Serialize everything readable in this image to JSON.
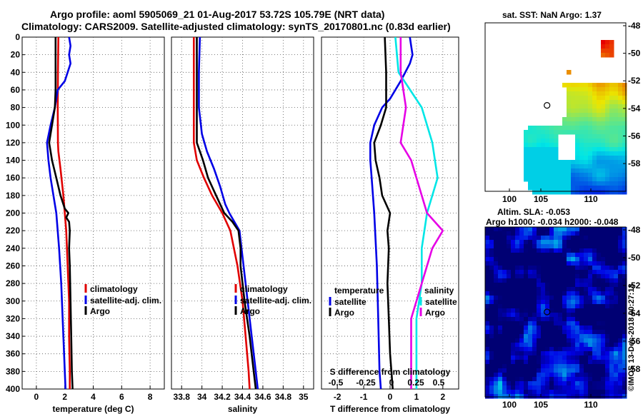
{
  "header": {
    "title_line1": "Argo profile: aoml 5905069_21 01-Aug-2017 53.72S 105.79E (NRT data)",
    "title_line2": "Climatology: CARS2009. Satellite-adjusted climatology: synTS_20170801.nc (0.83d earlier)"
  },
  "maps": {
    "sst_title": "sat. SST: NaN Argo: 1.37",
    "sla_title_line1": "Altim. SLA: -0.053",
    "sla_title_line2": "Argo h1000: -0.034 h2000: -0.048",
    "lat_ticks": [
      "-48",
      "-50",
      "-52",
      "-54",
      "-56",
      "-58"
    ],
    "lon_ticks": [
      "100",
      "105",
      "110"
    ]
  },
  "credit": "©IMOS 13-Dec-2018 00:27:18",
  "colors": {
    "climatology": "#e00000",
    "satellite": "#0000e6",
    "argo": "#000000",
    "sal_satellite": "#00e6e6",
    "sal_argo": "#e600e6"
  },
  "chart_data": [
    {
      "type": "line",
      "name": "temperature",
      "xlabel": "temperature (deg C)",
      "ylabel": "depth",
      "xlim": [
        -1,
        9
      ],
      "ylim": [
        400,
        0
      ],
      "xticks": [
        0,
        2,
        4,
        6,
        8
      ],
      "xtick_labels": [
        "0",
        "2",
        "4",
        "6",
        "8"
      ],
      "yticks": [
        0,
        20,
        40,
        60,
        80,
        100,
        120,
        140,
        160,
        180,
        200,
        220,
        240,
        260,
        280,
        300,
        320,
        340,
        360,
        380,
        400
      ],
      "grid": true,
      "legend": [
        "climatology",
        "satellite-adj. clim.",
        "Argo"
      ],
      "series": [
        {
          "name": "climatology",
          "color": "#e00000",
          "depth": [
            0,
            40,
            80,
            120,
            130,
            150,
            180,
            220,
            260,
            300,
            340,
            380,
            400
          ],
          "values": [
            1.55,
            1.52,
            1.5,
            1.52,
            1.55,
            1.7,
            1.9,
            2.1,
            2.2,
            2.3,
            2.3,
            2.35,
            2.35
          ]
        },
        {
          "name": "satellite-adj. clim.",
          "color": "#0000e6",
          "depth": [
            0,
            10,
            20,
            30,
            50,
            60,
            80,
            100,
            120,
            140,
            160,
            180,
            200,
            240,
            280,
            320,
            360,
            400
          ],
          "values": [
            2.3,
            2.4,
            2.3,
            2.4,
            2.0,
            1.5,
            1.3,
            1.0,
            0.75,
            0.85,
            1.0,
            1.2,
            1.4,
            1.6,
            1.75,
            1.85,
            1.95,
            2.05
          ]
        },
        {
          "name": "Argo",
          "color": "#000000",
          "depth": [
            0,
            20,
            40,
            60,
            80,
            100,
            120,
            140,
            160,
            180,
            195,
            200,
            205,
            210,
            220,
            240,
            260,
            300,
            340,
            380,
            400
          ],
          "values": [
            1.35,
            1.35,
            1.35,
            1.35,
            1.3,
            1.1,
            0.9,
            1.1,
            1.4,
            1.7,
            2.0,
            2.25,
            2.1,
            2.3,
            2.35,
            2.3,
            2.35,
            2.4,
            2.45,
            2.5,
            2.55
          ]
        }
      ]
    },
    {
      "type": "line",
      "name": "salinity",
      "xlabel": "salinity",
      "ylabel": "depth",
      "xlim": [
        33.7,
        35.1
      ],
      "ylim": [
        400,
        0
      ],
      "xticks": [
        33.8,
        34.0,
        34.2,
        34.4,
        34.6,
        34.8,
        35.0
      ],
      "xtick_labels": [
        "33.8",
        "34",
        "34.2",
        "34.4",
        "34.6",
        "34.8",
        "35"
      ],
      "grid": true,
      "legend": [
        "climatology",
        "satellite-adj. clim.",
        "Argo"
      ],
      "series": [
        {
          "name": "climatology",
          "color": "#e00000",
          "depth": [
            0,
            60,
            120,
            140,
            160,
            180,
            200,
            220,
            260,
            300,
            340,
            380,
            400
          ],
          "values": [
            33.92,
            33.92,
            33.92,
            33.95,
            34.02,
            34.1,
            34.2,
            34.28,
            34.35,
            34.4,
            34.43,
            34.46,
            34.47
          ]
        },
        {
          "name": "satellite-adj. clim.",
          "color": "#0000e6",
          "depth": [
            0,
            40,
            80,
            110,
            130,
            150,
            170,
            190,
            200,
            220,
            260,
            300,
            340,
            380,
            400
          ],
          "values": [
            33.98,
            33.97,
            33.97,
            34.0,
            34.05,
            34.12,
            34.18,
            34.23,
            34.27,
            34.37,
            34.41,
            34.45,
            34.49,
            34.53,
            34.55
          ]
        },
        {
          "name": "Argo",
          "color": "#000000",
          "depth": [
            0,
            60,
            120,
            130,
            140,
            160,
            180,
            200,
            210,
            220,
            240,
            260,
            300,
            340,
            380,
            400
          ],
          "values": [
            33.95,
            33.95,
            33.95,
            33.98,
            34.01,
            34.06,
            34.14,
            34.22,
            34.3,
            34.36,
            34.38,
            34.38,
            34.42,
            34.47,
            34.51,
            34.53
          ]
        }
      ]
    },
    {
      "type": "line",
      "name": "difference from climatology",
      "xlabel": "T difference from climatology",
      "xlabel_top": "S difference from climatology",
      "ylabel": "depth",
      "xlim": [
        -2.6,
        2.6
      ],
      "ylim": [
        400,
        0
      ],
      "xticks": [
        -2,
        -1,
        0,
        1,
        2
      ],
      "xtick_labels": [
        "-2",
        "-1",
        "0",
        "1",
        "2"
      ],
      "s_tick_labels": [
        "-0.5",
        "-0.25",
        "0",
        "0.25",
        "0.5"
      ],
      "grid": true,
      "legend_temperature_title": "temperature",
      "legend_temperature": [
        "satellite",
        "Argo"
      ],
      "legend_salinity_title": "salinity",
      "legend_salinity": [
        "satellite",
        "Argo"
      ],
      "series": [
        {
          "name": "temperature satellite",
          "color": "#0000e6",
          "depth": [
            0,
            10,
            20,
            30,
            50,
            70,
            80,
            100,
            120,
            140,
            160,
            200,
            260,
            320,
            380,
            400
          ],
          "values": [
            0.75,
            0.8,
            0.85,
            0.75,
            0.4,
            0.0,
            -0.3,
            -0.6,
            -0.75,
            -0.75,
            -0.7,
            -0.6,
            -0.5,
            -0.45,
            -0.4,
            -0.35
          ]
        },
        {
          "name": "temperature Argo",
          "color": "#000000",
          "depth": [
            0,
            40,
            80,
            100,
            120,
            140,
            160,
            180,
            200,
            220,
            240,
            280,
            320,
            360,
            400
          ],
          "values": [
            -0.2,
            -0.15,
            -0.15,
            -0.35,
            -0.6,
            -0.55,
            -0.4,
            -0.3,
            0.0,
            -0.1,
            -0.05,
            -0.1,
            -0.05,
            0.0,
            0.1
          ]
        },
        {
          "name": "salinity satellite",
          "color": "#00e6e6",
          "depth": [
            0,
            40,
            80,
            120,
            160,
            200,
            240,
            280,
            320,
            360,
            400
          ],
          "values": [
            0.05,
            0.08,
            0.3,
            0.4,
            0.45,
            0.35,
            0.3,
            0.3,
            0.25,
            0.25,
            0.25
          ]
        },
        {
          "name": "salinity Argo",
          "color": "#e600e6",
          "depth": [
            0,
            40,
            80,
            120,
            140,
            160,
            180,
            200,
            220,
            240,
            280,
            320,
            360,
            400
          ],
          "values": [
            0.1,
            0.1,
            0.15,
            0.1,
            0.2,
            0.25,
            0.3,
            0.35,
            0.5,
            0.4,
            0.3,
            0.2,
            0.2,
            0.2
          ]
        }
      ]
    }
  ]
}
